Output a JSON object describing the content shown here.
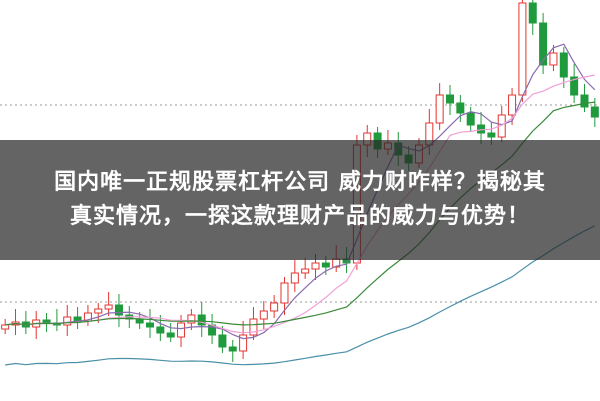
{
  "headline": {
    "line1": "国内唯一正规股票杠杆公司 威力财咋样？揭秘其",
    "line2": "真实情况，一探这款理财产品的威力与优势！"
  },
  "chart": {
    "type": "candlestick",
    "up_color": "#e3342f",
    "down_color": "#1f9a3c",
    "ma_colors": [
      "#8a6bb0",
      "#f0a0d8",
      "#3a8a3a",
      "#4a90a8"
    ],
    "closes": [
      70,
      73,
      68,
      75,
      72,
      70,
      78,
      74,
      82,
      86,
      90,
      80,
      76,
      72,
      68,
      62,
      58,
      72,
      80,
      70,
      60,
      48,
      44,
      60,
      76,
      84,
      92,
      112,
      122,
      126,
      132,
      128,
      136,
      132,
      250,
      262,
      246,
      252,
      240,
      232,
      250,
      272,
      300,
      292,
      282,
      270,
      262,
      258,
      280,
      300,
      392,
      372,
      330,
      342,
      318,
      300,
      288,
      278
    ]
  }
}
